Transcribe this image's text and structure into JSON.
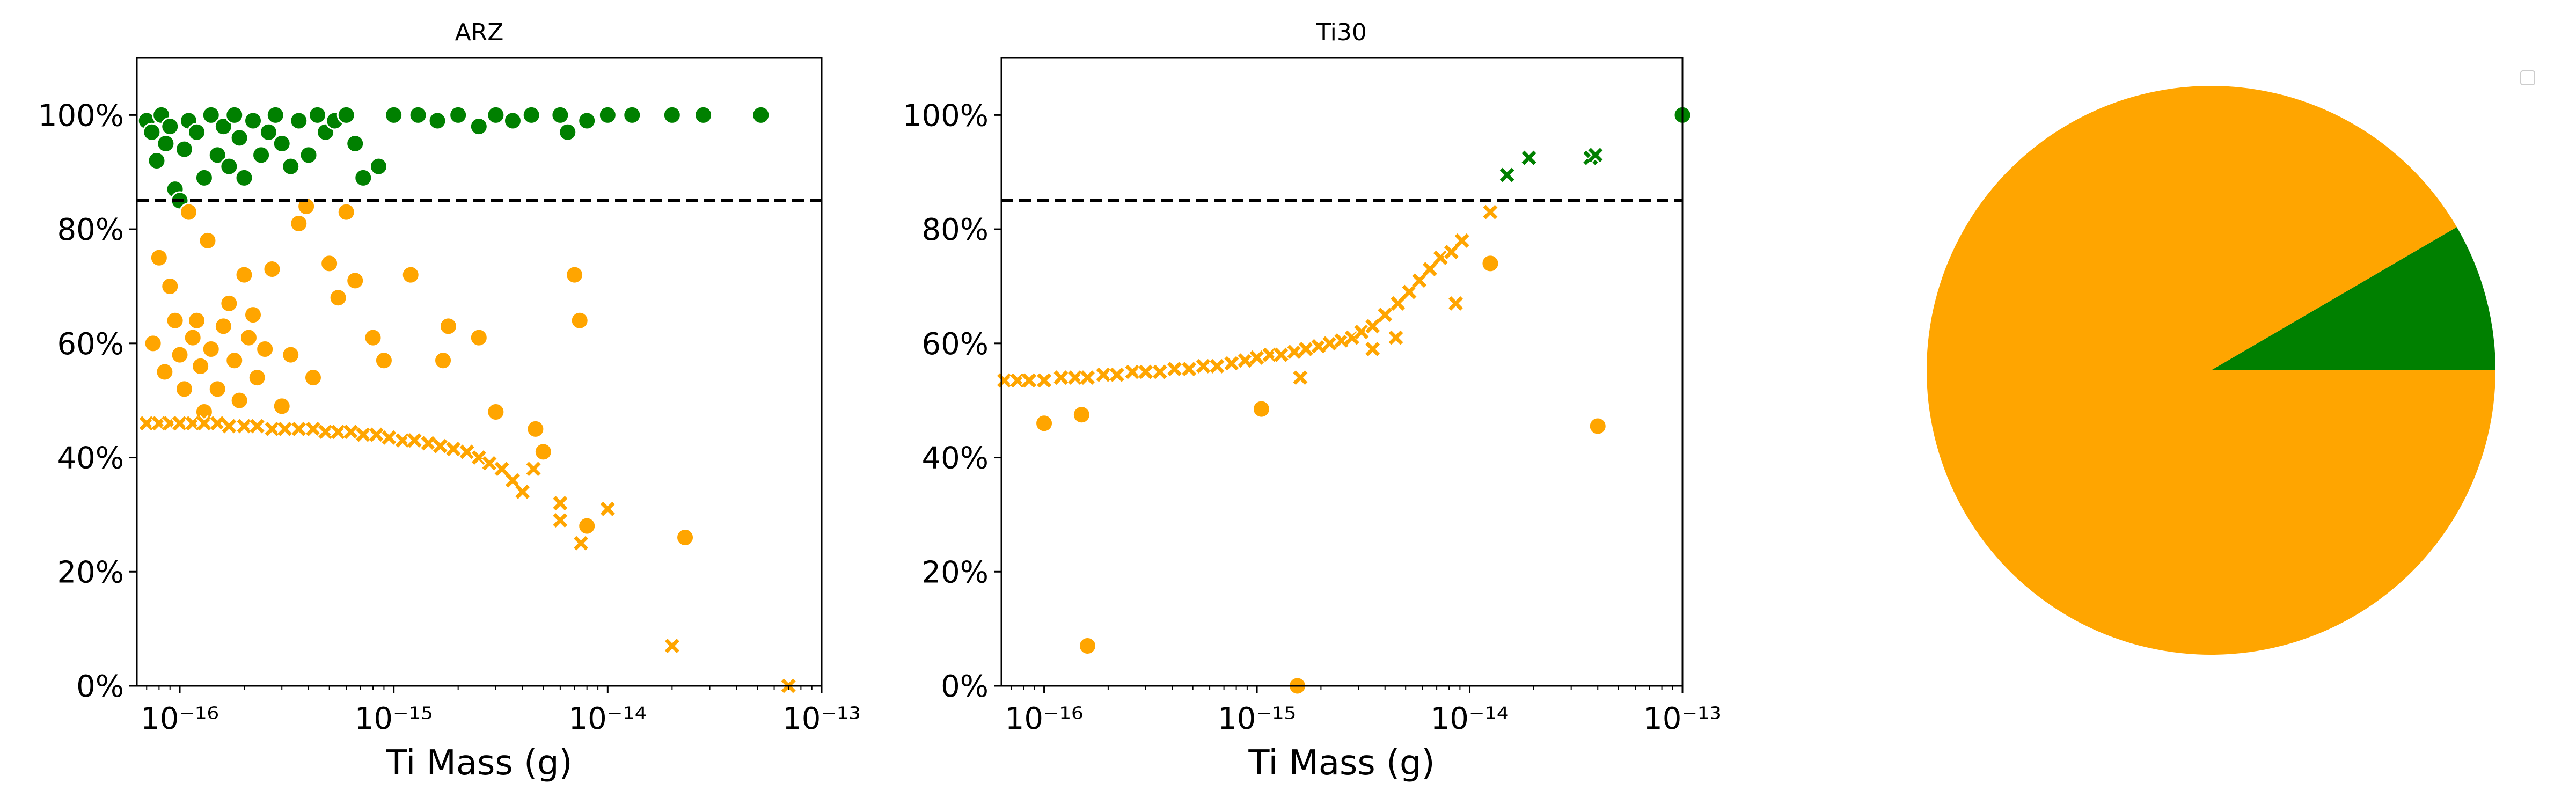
{
  "colors": {
    "green": "#008000",
    "orange": "#FFA500",
    "threshold": "#000000"
  },
  "chart_data": [
    {
      "type": "scatter",
      "title": "ARZ",
      "xlabel": "Ti Mass (g)",
      "ylabel": "",
      "x_scale": "log",
      "xlim": [
        6.3e-17,
        1e-13
      ],
      "ylim": [
        0,
        110
      ],
      "x_ticks": [
        "10⁻¹⁶",
        "10⁻¹⁵",
        "10⁻¹⁴",
        "10⁻¹³"
      ],
      "y_ticks": [
        "0%",
        "20%",
        "40%",
        "60%",
        "80%",
        "100%"
      ],
      "threshold_line": {
        "y": 85,
        "style": "dashed"
      },
      "grid": false,
      "series": [
        {
          "marker": "circle",
          "color": "#008000",
          "points": [
            [
              7e-17,
              99
            ],
            [
              7.4e-17,
              97
            ],
            [
              7.8e-17,
              92
            ],
            [
              8.2e-17,
              100
            ],
            [
              8.6e-17,
              95
            ],
            [
              9e-17,
              98
            ],
            [
              9.5e-17,
              87
            ],
            [
              1e-16,
              85
            ],
            [
              1.05e-16,
              94
            ],
            [
              1.1e-16,
              99
            ],
            [
              1.2e-16,
              97
            ],
            [
              1.3e-16,
              89
            ],
            [
              1.4e-16,
              100
            ],
            [
              1.5e-16,
              93
            ],
            [
              1.6e-16,
              98
            ],
            [
              1.7e-16,
              91
            ],
            [
              1.8e-16,
              100
            ],
            [
              1.9e-16,
              96
            ],
            [
              2e-16,
              89
            ],
            [
              2.2e-16,
              99
            ],
            [
              2.4e-16,
              93
            ],
            [
              2.6e-16,
              97
            ],
            [
              2.8e-16,
              100
            ],
            [
              3e-16,
              95
            ],
            [
              3.3e-16,
              91
            ],
            [
              3.6e-16,
              99
            ],
            [
              4e-16,
              93
            ],
            [
              4.4e-16,
              100
            ],
            [
              4.8e-16,
              97
            ],
            [
              5.3e-16,
              99
            ],
            [
              6e-16,
              100
            ],
            [
              6.6e-16,
              95
            ],
            [
              7.2e-16,
              89
            ],
            [
              8.5e-16,
              91
            ],
            [
              1e-15,
              100
            ],
            [
              1.3e-15,
              100
            ],
            [
              1.6e-15,
              99
            ],
            [
              2e-15,
              100
            ],
            [
              2.5e-15,
              98
            ],
            [
              3e-15,
              100
            ],
            [
              3.6e-15,
              99
            ],
            [
              4.4e-15,
              100
            ],
            [
              6e-15,
              100
            ],
            [
              6.5e-15,
              97
            ],
            [
              8e-15,
              99
            ],
            [
              1e-14,
              100
            ],
            [
              1.3e-14,
              100
            ],
            [
              2e-14,
              100
            ],
            [
              2.8e-14,
              100
            ],
            [
              5.2e-14,
              100
            ]
          ]
        },
        {
          "marker": "circle",
          "color": "#FFA500",
          "points": [
            [
              7.5e-17,
              60
            ],
            [
              8e-17,
              75
            ],
            [
              8.5e-17,
              55
            ],
            [
              9e-17,
              70
            ],
            [
              9.5e-17,
              64
            ],
            [
              1e-16,
              58
            ],
            [
              1.05e-16,
              52
            ],
            [
              1.1e-16,
              83
            ],
            [
              1.15e-16,
              61
            ],
            [
              1.2e-16,
              64
            ],
            [
              1.25e-16,
              56
            ],
            [
              1.3e-16,
              48
            ],
            [
              1.35e-16,
              78
            ],
            [
              1.4e-16,
              59
            ],
            [
              1.5e-16,
              52
            ],
            [
              1.6e-16,
              63
            ],
            [
              1.7e-16,
              67
            ],
            [
              1.8e-16,
              57
            ],
            [
              1.9e-16,
              50
            ],
            [
              2e-16,
              72
            ],
            [
              2.1e-16,
              61
            ],
            [
              2.2e-16,
              65
            ],
            [
              2.3e-16,
              54
            ],
            [
              2.5e-16,
              59
            ],
            [
              2.7e-16,
              73
            ],
            [
              3e-16,
              49
            ],
            [
              3.3e-16,
              58
            ],
            [
              3.6e-16,
              81
            ],
            [
              3.9e-16,
              84
            ],
            [
              4.2e-16,
              54
            ],
            [
              5e-16,
              74
            ],
            [
              5.5e-16,
              68
            ],
            [
              6e-16,
              83
            ],
            [
              6.6e-16,
              71
            ],
            [
              8e-16,
              61
            ],
            [
              9e-16,
              57
            ],
            [
              1.2e-15,
              72
            ],
            [
              1.7e-15,
              57
            ],
            [
              1.8e-15,
              63
            ],
            [
              2.5e-15,
              61
            ],
            [
              3e-15,
              48
            ],
            [
              4.6e-15,
              45
            ],
            [
              5e-15,
              41
            ],
            [
              7e-15,
              72
            ],
            [
              7.4e-15,
              64
            ],
            [
              8e-15,
              28
            ],
            [
              2.3e-14,
              26
            ]
          ]
        },
        {
          "marker": "x",
          "color": "#FFA500",
          "points": [
            [
              7e-17,
              46
            ],
            [
              8e-17,
              46
            ],
            [
              9e-17,
              46
            ],
            [
              1e-16,
              46
            ],
            [
              1.15e-16,
              46
            ],
            [
              1.3e-16,
              46
            ],
            [
              1.5e-16,
              46
            ],
            [
              1.7e-16,
              45.5
            ],
            [
              2e-16,
              45.5
            ],
            [
              2.3e-16,
              45.5
            ],
            [
              2.7e-16,
              45
            ],
            [
              3.1e-16,
              45
            ],
            [
              3.6e-16,
              45
            ],
            [
              4.2e-16,
              45
            ],
            [
              4.8e-16,
              44.5
            ],
            [
              5.5e-16,
              44.5
            ],
            [
              6.3e-16,
              44.5
            ],
            [
              7.2e-16,
              44
            ],
            [
              8.3e-16,
              44
            ],
            [
              9.5e-16,
              43.5
            ],
            [
              1.1e-15,
              43
            ],
            [
              1.25e-15,
              43
            ],
            [
              1.45e-15,
              42.5
            ],
            [
              1.65e-15,
              42
            ],
            [
              1.9e-15,
              41.5
            ],
            [
              2.2e-15,
              41
            ],
            [
              2.5e-15,
              40
            ],
            [
              2.8e-15,
              39
            ],
            [
              3.2e-15,
              38
            ],
            [
              3.6e-15,
              36
            ],
            [
              4e-15,
              34
            ],
            [
              4.5e-15,
              38
            ],
            [
              6e-15,
              32
            ],
            [
              6e-15,
              29
            ],
            [
              7.5e-15,
              25
            ],
            [
              1e-14,
              31
            ],
            [
              2e-14,
              7
            ],
            [
              7e-14,
              0
            ]
          ]
        }
      ]
    },
    {
      "type": "scatter",
      "title": "Ti30",
      "xlabel": "Ti Mass (g)",
      "ylabel": "",
      "x_scale": "log",
      "xlim": [
        6.3e-17,
        1e-13
      ],
      "ylim": [
        0,
        110
      ],
      "x_ticks": [
        "10⁻¹⁶",
        "10⁻¹⁵",
        "10⁻¹⁴",
        "10⁻¹³"
      ],
      "y_ticks": [
        "0%",
        "20%",
        "40%",
        "60%",
        "80%",
        "100%"
      ],
      "threshold_line": {
        "y": 85,
        "style": "dashed"
      },
      "grid": false,
      "series": [
        {
          "marker": "x",
          "color": "#FFA500",
          "points": [
            [
              6.5e-17,
              53.5
            ],
            [
              7.5e-17,
              53.5
            ],
            [
              8.5e-17,
              53.5
            ],
            [
              1e-16,
              53.5
            ],
            [
              1.2e-16,
              54
            ],
            [
              1.4e-16,
              54
            ],
            [
              1.6e-16,
              54
            ],
            [
              1.9e-16,
              54.5
            ],
            [
              2.2e-16,
              54.5
            ],
            [
              2.6e-16,
              55
            ],
            [
              3e-16,
              55
            ],
            [
              3.5e-16,
              55
            ],
            [
              4.1e-16,
              55.5
            ],
            [
              4.8e-16,
              55.5
            ],
            [
              5.6e-16,
              56
            ],
            [
              6.5e-16,
              56
            ],
            [
              7.6e-16,
              56.5
            ],
            [
              8.8e-16,
              57
            ],
            [
              1e-15,
              57.5
            ],
            [
              1.15e-15,
              58
            ],
            [
              1.3e-15,
              58
            ],
            [
              1.5e-15,
              58.5
            ],
            [
              1.7e-15,
              59
            ],
            [
              1.95e-15,
              59.5
            ],
            [
              2.2e-15,
              60
            ],
            [
              2.5e-15,
              60.5
            ],
            [
              2.8e-15,
              61
            ],
            [
              3.1e-15,
              62
            ],
            [
              3.5e-15,
              63
            ],
            [
              4e-15,
              65
            ],
            [
              4.6e-15,
              67
            ],
            [
              5.2e-15,
              69
            ],
            [
              5.8e-15,
              71
            ],
            [
              6.5e-15,
              73
            ],
            [
              7.3e-15,
              75
            ],
            [
              8.2e-15,
              76
            ],
            [
              9.2e-15,
              78
            ],
            [
              1.25e-14,
              83
            ],
            [
              8.6e-15,
              67
            ],
            [
              1.6e-15,
              54
            ],
            [
              3.5e-15,
              59
            ],
            [
              4.5e-15,
              61
            ]
          ]
        },
        {
          "marker": "circle",
          "color": "#FFA500",
          "points": [
            [
              1e-16,
              46
            ],
            [
              1.5e-16,
              47.5
            ],
            [
              1.6e-16,
              7
            ],
            [
              1.05e-15,
              48.5
            ],
            [
              1.55e-15,
              0
            ],
            [
              1.25e-14,
              74
            ],
            [
              4e-14,
              45.5
            ]
          ]
        },
        {
          "marker": "x",
          "color": "#008000",
          "points": [
            [
              1.5e-14,
              89.5
            ],
            [
              1.9e-14,
              92.5
            ],
            [
              3.7e-14,
              92.5
            ],
            [
              3.9e-14,
              93
            ]
          ]
        },
        {
          "marker": "circle",
          "color": "#008000",
          "points": [
            [
              1e-13,
              100
            ]
          ]
        }
      ]
    },
    {
      "type": "pie",
      "legend": "top-right (empty)",
      "slices": [
        {
          "color": "#008000",
          "value": 8.4
        },
        {
          "color": "#FFA500",
          "value": 91.6
        }
      ]
    }
  ]
}
